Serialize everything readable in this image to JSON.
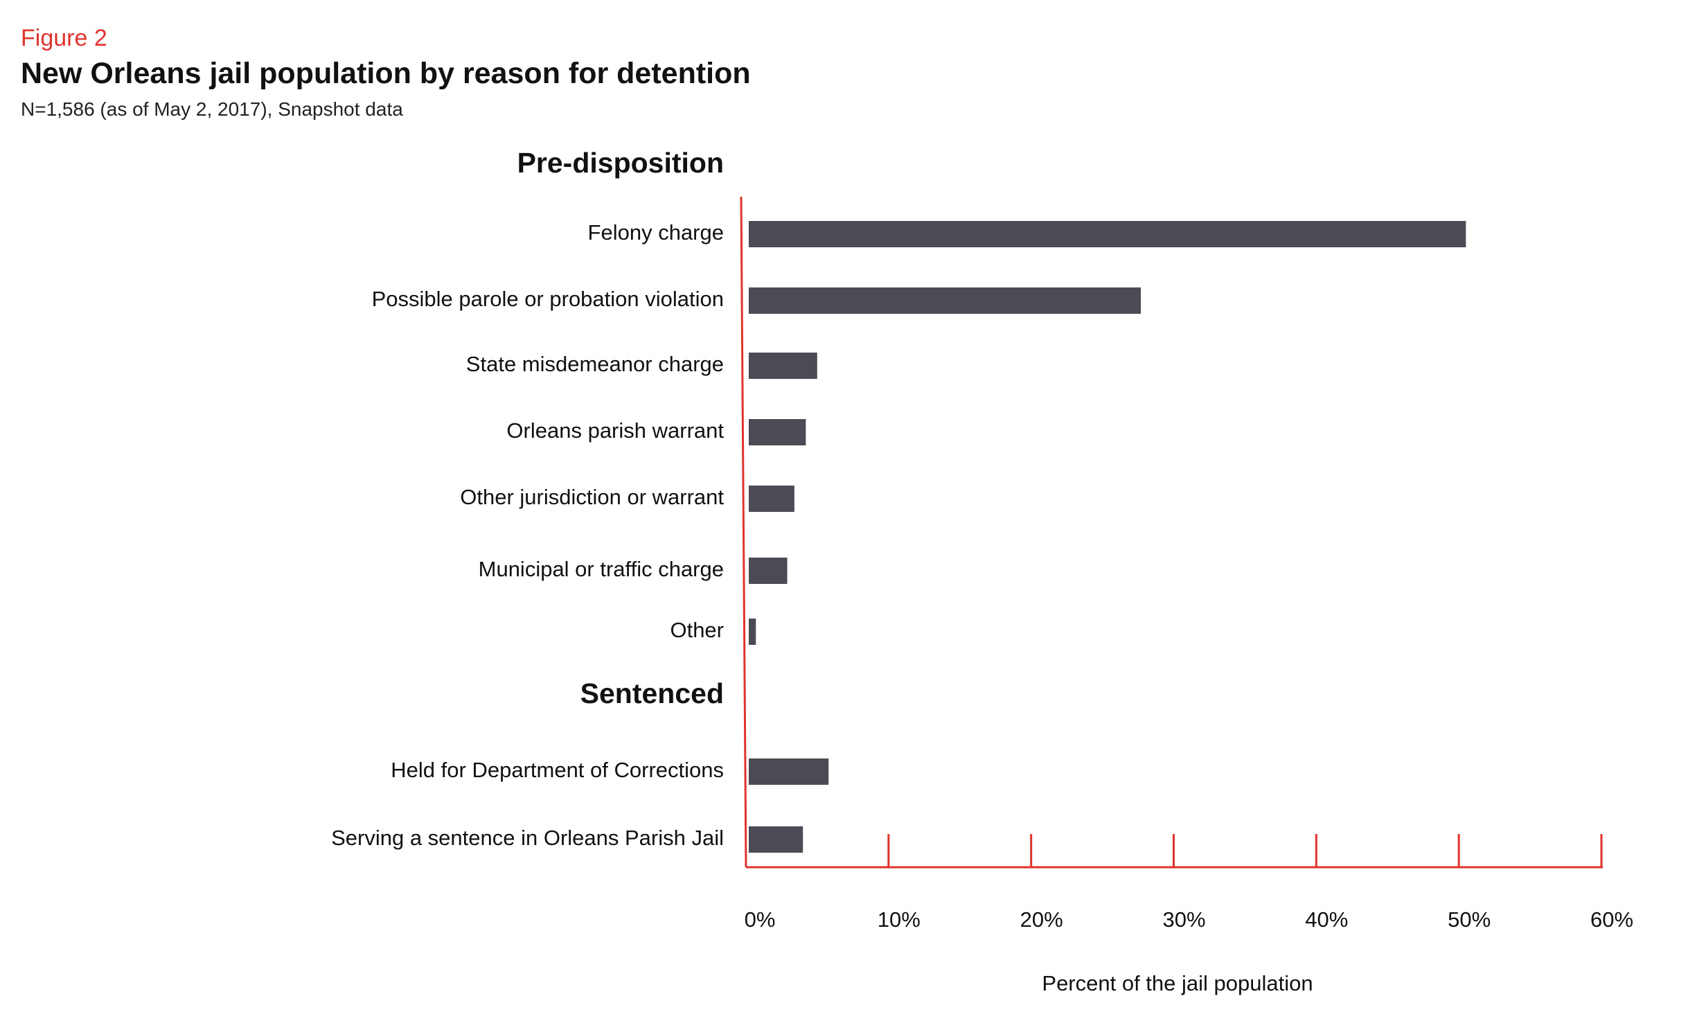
{
  "header": {
    "figure_label": "Figure 2",
    "title": "New Orleans jail population by reason for detention",
    "subtitle": "N=1,586 (as of May 2, 2017), Snapshot data"
  },
  "colors": {
    "accent": "#e0332d",
    "bar": "#4b4b55",
    "text": "#111111"
  },
  "chart_data": {
    "type": "bar",
    "orientation": "horizontal",
    "title": "New Orleans jail population by reason for detention",
    "subtitle": "N=1,586 (as of May 2, 2017), Snapshot data",
    "xlabel": "Percent of the jail population",
    "ylabel": "",
    "xlim": [
      0,
      60
    ],
    "x_ticks": [
      "0%",
      "10%",
      "20%",
      "30%",
      "40%",
      "50%",
      "60%"
    ],
    "grid": false,
    "groups": [
      {
        "name": "Pre-disposition",
        "categories": [
          "Felony charge",
          "Possible parole or probation violation",
          "State misdemeanor charge",
          "Orleans parish warrant",
          "Other jurisdiction or warrant",
          "Municipal or traffic charge",
          "Other"
        ],
        "values": [
          50.3,
          27.5,
          4.8,
          4.0,
          3.2,
          2.7,
          0.5
        ]
      },
      {
        "name": "Sentenced",
        "categories": [
          "Held for Department of Corrections",
          "Serving a sentence in Orleans Parish Jail"
        ],
        "values": [
          5.6,
          3.8
        ]
      }
    ]
  }
}
